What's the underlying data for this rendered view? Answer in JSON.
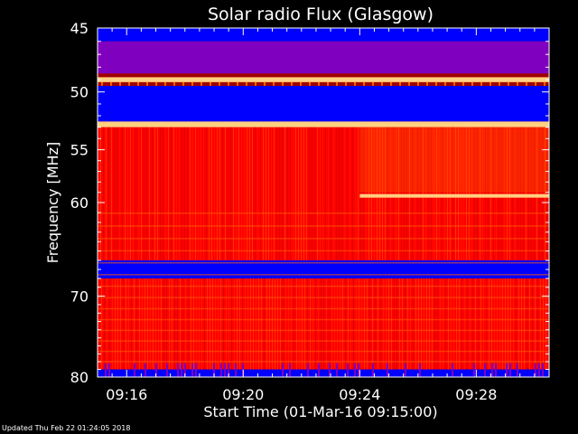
{
  "footer": "Updated Thu Feb 22 01:24:05 2018",
  "chart_data": {
    "type": "heatmap",
    "title": "Solar radio Flux (Glasgow)",
    "xlabel": "Start Time (01-Mar-16 09:15:00)",
    "ylabel": "Frequency [MHz]",
    "xlim": [
      "09:15:00",
      "09:30:30"
    ],
    "ylim": [
      45,
      80
    ],
    "xticks": [
      "09:16",
      "09:20",
      "09:24",
      "09:28"
    ],
    "yticks": [
      45,
      50,
      55,
      60,
      70,
      80
    ],
    "y_scale": "log",
    "colormap": [
      "#000080",
      "#0000ff",
      "#8000c0",
      "#ff0000",
      "#ff6000",
      "#ffd080"
    ],
    "bands": [
      {
        "from": 45,
        "to": 46,
        "level": "low"
      },
      {
        "from": 46,
        "to": 48.5,
        "level": "medium-low"
      },
      {
        "from": 48.8,
        "to": 49.2,
        "level": "high"
      },
      {
        "from": 49.5,
        "to": 52.5,
        "level": "low"
      },
      {
        "from": 52.5,
        "to": 53,
        "level": "high"
      },
      {
        "from": 53,
        "to": 66,
        "level": "medium-high"
      },
      {
        "from": 66,
        "to": 68,
        "level": "low"
      },
      {
        "from": 68,
        "to": 79,
        "level": "medium-high"
      },
      {
        "from": 79,
        "to": 80,
        "level": "low"
      }
    ],
    "features": [
      {
        "name": "narrowband-line",
        "frequency": 59.3,
        "start": "09:24:00",
        "end": "09:30:30"
      },
      {
        "name": "broadband-step",
        "time": "09:24:00"
      }
    ]
  }
}
